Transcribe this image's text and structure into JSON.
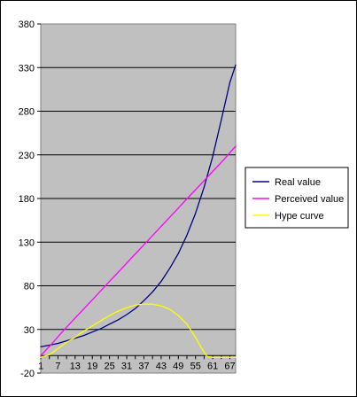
{
  "chart_data": {
    "type": "line",
    "title": "",
    "xlabel": "",
    "ylabel": "",
    "ylim": [
      -20,
      380
    ],
    "yticks": [
      -20,
      30,
      80,
      130,
      180,
      230,
      280,
      330,
      380
    ],
    "xlim": [
      1,
      69
    ],
    "xticks": [
      1,
      7,
      13,
      19,
      25,
      31,
      37,
      43,
      49,
      55,
      61,
      67
    ],
    "grid": true,
    "plot_background": "#c0c0c0",
    "legend_placement": "right",
    "series": [
      {
        "name": "Real value",
        "color": "#000080",
        "x": [
          1,
          4,
          7,
          10,
          13,
          16,
          19,
          22,
          25,
          28,
          31,
          34,
          37,
          40,
          43,
          46,
          49,
          52,
          55,
          58,
          61,
          64,
          67,
          69
        ],
        "values": [
          10,
          12,
          14,
          17,
          20,
          23,
          27,
          31,
          36,
          41,
          47,
          54,
          63,
          73,
          85,
          100,
          117,
          138,
          163,
          193,
          228,
          270,
          313,
          333
        ]
      },
      {
        "name": "Perceived value",
        "color": "#ff00ff",
        "x": [
          1,
          5,
          9,
          13,
          17,
          21,
          25,
          29,
          33,
          37,
          41,
          45,
          49,
          53,
          57,
          61,
          65,
          69
        ],
        "values": [
          0,
          14,
          29,
          43,
          57,
          71,
          85,
          99,
          113,
          127,
          141,
          155,
          169,
          183,
          197,
          211,
          225,
          240
        ]
      },
      {
        "name": "Hype curve",
        "color": "#ffff00",
        "x": [
          1,
          4,
          7,
          10,
          13,
          16,
          19,
          22,
          25,
          28,
          31,
          34,
          37,
          40,
          43,
          46,
          49,
          52,
          55,
          57,
          59,
          61,
          64,
          67,
          69
        ],
        "values": [
          -2,
          1,
          8,
          15,
          21,
          28,
          34,
          40,
          46,
          51,
          55,
          58,
          59,
          59,
          57,
          53,
          46,
          36,
          21,
          9,
          -1,
          -2,
          -2,
          -2,
          -2
        ]
      }
    ]
  }
}
